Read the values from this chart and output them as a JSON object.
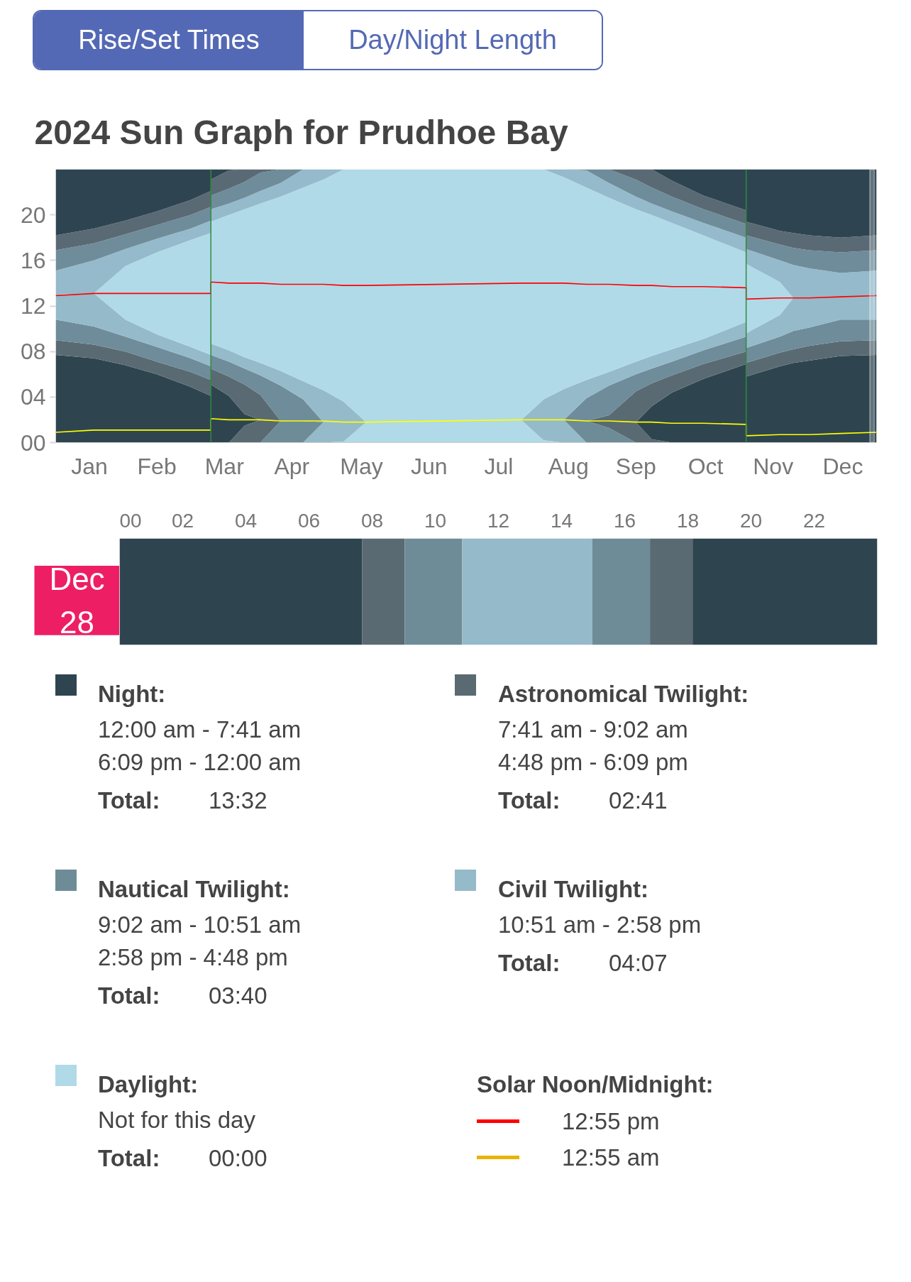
{
  "chart_data": [
    {
      "type": "other",
      "annotations": [
        "Rise/Set Times",
        "Day/Night Length"
      ]
    },
    {
      "type": "area",
      "stacked": true,
      "title": "2024 Sun Graph for Prudhoe Bay",
      "x": [
        "2024-01-01",
        "2024-01-18",
        "2024-02-01",
        "2024-02-15",
        "2024-03-01",
        "2024-03-10",
        "2024-03-10",
        "2024-03-18",
        "2024-03-25",
        "2024-04-01",
        "2024-04-10",
        "2024-04-20",
        "2024-04-29",
        "2024-05-08",
        "2024-05-18",
        "2024-07-26",
        "2024-08-05",
        "2024-08-14",
        "2024-08-24",
        "2024-09-03",
        "2024-09-15",
        "2024-09-22",
        "2024-10-01",
        "2024-10-15",
        "2024-11-03",
        "2024-11-03",
        "2024-11-18",
        "2024-11-24",
        "2024-12-01",
        "2024-12-15",
        "2024-12-31"
      ],
      "series": [
        {
          "color": "#b0dae7",
          "values": [
            null,
            null,
            null,
            null,
            null,
            null,
            null,
            null,
            null,
            null,
            null,
            null,
            0,
            0.1,
            1.8,
            2.0,
            0.2,
            0,
            null,
            null,
            null,
            null,
            null,
            null,
            null,
            null,
            null,
            null,
            null,
            null,
            null
          ]
        },
        {
          "color": "#95bac9",
          "values": [
            null,
            null,
            null,
            null,
            null,
            null,
            null,
            null,
            null,
            null,
            null,
            0,
            1.8,
            1.7,
            0,
            0,
            1.8,
            2.0,
            0,
            null,
            null,
            null,
            null,
            null,
            null,
            null,
            null,
            null,
            null,
            null,
            null
          ]
        },
        {
          "color": "#6e8c98",
          "values": [
            null,
            null,
            null,
            null,
            null,
            null,
            null,
            null,
            null,
            0,
            1.9,
            1.9,
            0,
            null,
            null,
            null,
            null,
            0,
            1.9,
            1.3,
            0,
            null,
            null,
            null,
            null,
            null,
            null,
            null,
            null,
            null,
            null
          ]
        },
        {
          "color": "#5a6a72",
          "values": [
            null,
            null,
            null,
            null,
            null,
            null,
            null,
            0,
            1.5,
            2.0,
            0,
            null,
            null,
            null,
            null,
            null,
            null,
            null,
            0,
            0.6,
            1.8,
            0.3,
            0,
            null,
            null,
            null,
            null,
            null,
            null,
            null,
            null
          ]
        },
        {
          "color": "#2e4550",
          "values": [
            7.7,
            7.4,
            6.8,
            6.0,
            4.9,
            4.1,
            5.1,
            4.1,
            1.0,
            0,
            null,
            null,
            null,
            null,
            null,
            null,
            null,
            null,
            null,
            null,
            0,
            2.9,
            4.4,
            5.6,
            6.9,
            5.8,
            6.7,
            7.0,
            7.2,
            7.6,
            7.7
          ]
        },
        {
          "color": "#5a6a73",
          "values": [
            1.3,
            1.2,
            1.2,
            1.1,
            1.3,
            1.4,
            1.4,
            1.7,
            2.6,
            2.2,
            0,
            null,
            null,
            null,
            null,
            null,
            null,
            null,
            0,
            0.5,
            2.7,
            2.0,
            1.5,
            1.3,
            1.1,
            1.2,
            1.2,
            1.2,
            1.3,
            1.3,
            1.3
          ]
        },
        {
          "color": "#6e8c99",
          "values": [
            1.8,
            1.6,
            1.3,
            1.3,
            1.2,
            1.2,
            1.2,
            1.3,
            1.4,
            1.7,
            3.1,
            1.9,
            0,
            null,
            null,
            null,
            null,
            0,
            2.0,
            2.6,
            1.5,
            1.3,
            1.2,
            1.2,
            1.3,
            1.3,
            1.4,
            1.6,
            1.6,
            1.9,
            1.8
          ]
        },
        {
          "color": "#95baca",
          "values": [
            2.2,
            2.9,
            1.5,
            1.1,
            1.0,
            1.0,
            1.0,
            1.0,
            1.0,
            1.1,
            1.3,
            1.6,
            2.8,
            1.8,
            0,
            0,
            1.8,
            2.7,
            1.6,
            1.2,
            1.1,
            1.1,
            1.1,
            1.0,
            1.3,
            1.3,
            1.9,
            2.9,
            2.6,
            2.0,
            2.1
          ]
        },
        {
          "color": "#b0dae8",
          "values": [
            null,
            0,
            4.7,
            7.2,
            9.4,
            10.7,
            10.7,
            11.9,
            13.0,
            14.0,
            15.3,
            17.0,
            18.5,
            20.4,
            22.2,
            22.0,
            20.2,
            18.6,
            16.9,
            15.3,
            13.4,
            12.4,
            11.1,
            9.1,
            6.1,
            6.1,
            2.9,
            0,
            null,
            null,
            null
          ]
        },
        {
          "color": "#95bacb",
          "values": [
            2.1,
            2.9,
            1.5,
            1.2,
            1.0,
            1.1,
            1.1,
            1.0,
            1.0,
            1.1,
            1.2,
            1.6,
            0.9,
            0,
            null,
            null,
            0,
            0.7,
            1.5,
            1.3,
            1.1,
            1.0,
            1.0,
            1.1,
            1.3,
            1.3,
            1.9,
            2.9,
            2.6,
            2.1,
            2.2
          ]
        },
        {
          "color": "#6e8c9a",
          "values": [
            1.8,
            1.5,
            1.3,
            1.2,
            1.2,
            1.2,
            1.2,
            1.3,
            1.4,
            1.6,
            1.2,
            0,
            null,
            null,
            null,
            null,
            null,
            0,
            0.1,
            1.2,
            1.5,
            1.4,
            1.3,
            1.2,
            1.2,
            1.2,
            1.4,
            1.5,
            1.6,
            1.8,
            1.8
          ]
        },
        {
          "color": "#5a6a74",
          "values": [
            1.3,
            1.3,
            1.2,
            1.2,
            1.3,
            1.4,
            1.4,
            1.6,
            1.1,
            0.3,
            0,
            null,
            null,
            null,
            null,
            null,
            null,
            null,
            null,
            0,
            0.9,
            1.6,
            1.4,
            1.2,
            1.2,
            1.2,
            1.2,
            1.3,
            1.3,
            1.3,
            1.3
          ]
        },
        {
          "color": "#2e4551",
          "values": [
            5.8,
            5.2,
            4.5,
            3.7,
            2.7,
            1.9,
            0.9,
            0.1,
            0,
            null,
            null,
            null,
            null,
            null,
            null,
            null,
            null,
            null,
            null,
            null,
            null,
            0,
            1.0,
            2.3,
            3.6,
            4.6,
            5.4,
            5.6,
            5.8,
            6.0,
            5.8
          ]
        },
        {
          "type": "line",
          "color": "#ff0000",
          "values": [
            12.9,
            13.1,
            13.1,
            13.1,
            13.1,
            13.1,
            14.1,
            14.0,
            14.0,
            14.0,
            13.9,
            13.9,
            13.9,
            13.8,
            13.8,
            14.0,
            14.0,
            14.0,
            13.9,
            13.9,
            13.8,
            13.8,
            13.7,
            13.7,
            13.6,
            12.6,
            12.7,
            12.7,
            12.7,
            12.8,
            12.9
          ]
        },
        {
          "type": "line",
          "color": "#ffff00",
          "values": [
            0.9,
            1.1,
            1.1,
            1.1,
            1.1,
            1.1,
            2.1,
            2.0,
            2.0,
            2.0,
            1.9,
            1.9,
            1.9,
            1.8,
            1.8,
            2.0,
            2.0,
            2.0,
            1.9,
            1.9,
            1.8,
            1.8,
            1.7,
            1.7,
            1.6,
            0.6,
            0.7,
            0.7,
            0.7,
            0.8,
            0.9
          ]
        }
      ],
      "xlim": [
        "2024-01-01",
        "2024-12-31"
      ],
      "ylim": [
        0,
        24
      ],
      "xticks": [
        {
          "value": "2024-01-16",
          "label": "Jan"
        },
        {
          "value": "2024-02-15",
          "label": "Feb"
        },
        {
          "value": "2024-03-16",
          "label": "Mar"
        },
        {
          "value": "2024-04-15",
          "label": "Apr"
        },
        {
          "value": "2024-05-16",
          "label": "May"
        },
        {
          "value": "2024-06-15",
          "label": "Jun"
        },
        {
          "value": "2024-07-16",
          "label": "Jul"
        },
        {
          "value": "2024-08-16",
          "label": "Aug"
        },
        {
          "value": "2024-09-15",
          "label": "Sep"
        },
        {
          "value": "2024-10-16",
          "label": "Oct"
        },
        {
          "value": "2024-11-15",
          "label": "Nov"
        },
        {
          "value": "2024-12-16",
          "label": "Dec"
        }
      ],
      "yticks": [
        {
          "value": 0,
          "label": "00"
        },
        {
          "value": 4,
          "label": "04"
        },
        {
          "value": 8,
          "label": "08"
        },
        12,
        16,
        20
      ],
      "ref_lines": [
        {
          "axis": "x",
          "value": "2024-03-10",
          "color": "#2e8b3e"
        },
        {
          "axis": "x",
          "value": "2024-11-03",
          "color": "#2e8b3e"
        }
      ],
      "bands": [
        {
          "axis": "x",
          "from": "2024-12-28",
          "to": "2024-12-30",
          "color": "#ffffff"
        }
      ]
    },
    {
      "type": "bar",
      "orientation": "horizontal",
      "stacked": true,
      "categories": [
        "Dec 28"
      ],
      "series": [
        {
          "color": "#2e4550",
          "values": [
            7.68
          ]
        },
        {
          "color": "#5a6a72",
          "values": [
            1.35
          ]
        },
        {
          "color": "#6e8c98",
          "values": [
            1.82
          ]
        },
        {
          "color": "#95bac9",
          "values": [
            4.12
          ]
        },
        {
          "color": "#6e8c98",
          "values": [
            1.83
          ]
        },
        {
          "color": "#5a6a72",
          "values": [
            1.35
          ]
        },
        {
          "color": "#2e4550",
          "values": [
            5.85
          ]
        }
      ],
      "xlim": [
        0,
        24
      ],
      "xticks": [
        {
          "value": 0,
          "label": "00"
        },
        {
          "value": 2,
          "label": "02"
        },
        {
          "value": 4,
          "label": "04"
        },
        {
          "value": 6,
          "label": "06"
        },
        {
          "value": 8,
          "label": "08"
        },
        10,
        12,
        14,
        16,
        18,
        20,
        22
      ]
    },
    {
      "type": "other",
      "title": "Night:",
      "color": "#2e4550",
      "annotations": [
        "12:00 am - 7:41 am",
        "6:09 pm - 12:00 am",
        "Total:",
        "13:32"
      ]
    },
    {
      "type": "other",
      "title": "Astronomical Twilight:",
      "color": "#5a6a72",
      "annotations": [
        "7:41 am - 9:02 am",
        "4:48 pm - 6:09 pm",
        "Total:",
        "02:41"
      ]
    },
    {
      "type": "other",
      "title": "Nautical Twilight:",
      "color": "#6e8c98",
      "annotations": [
        "9:02 am - 10:51 am",
        "2:58 pm - 4:48 pm",
        "Total:",
        "03:40"
      ]
    },
    {
      "type": "other",
      "title": "Civil Twilight:",
      "color": "#95bac9",
      "annotations": [
        "10:51 am - 2:58 pm",
        "Total:",
        "04:07"
      ]
    },
    {
      "type": "other",
      "title": "Daylight:",
      "color": "#b0dae7",
      "annotations": [
        "Not for this day",
        "Total:",
        "00:00"
      ]
    },
    {
      "type": "other",
      "title": "Solar Noon/Midnight:",
      "colors": [
        "#ff0000",
        "#e8b400"
      ],
      "annotations": [
        "12:55 pm",
        "12:55 am"
      ]
    }
  ]
}
